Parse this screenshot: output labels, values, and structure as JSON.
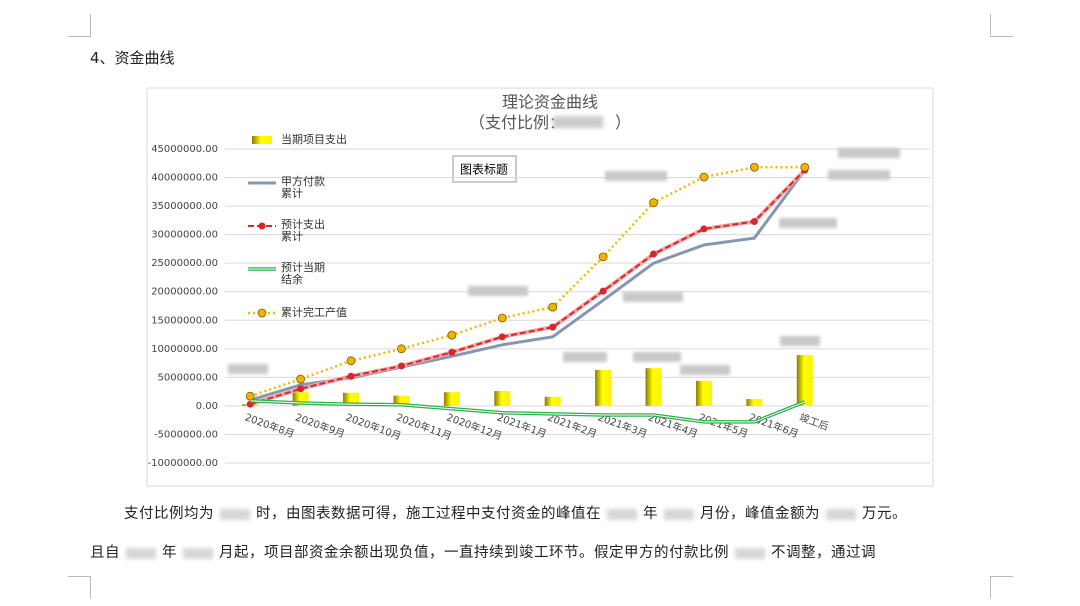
{
  "heading": "4、资金曲线",
  "chart_data": {
    "type": "combo",
    "title": "理论资金曲线",
    "subtitle_parts": [
      "（支付比例：",
      "）"
    ],
    "placeholder": "图表标题",
    "categories": [
      "2020年8月",
      "2020年9月",
      "2020年10月",
      "2020年11月",
      "2020年12月",
      "2021年1月",
      "2021年2月",
      "2021年3月",
      "2021年4月",
      "2021年5月",
      "2021年6月",
      "竣工后"
    ],
    "series": [
      {
        "name": "当期项目支出",
        "kind": "bar",
        "color": "#e6d800",
        "values": [
          300000,
          2400000,
          2300000,
          1800000,
          2400000,
          2600000,
          1600000,
          6300000,
          6600000,
          4400000,
          1200000,
          8900000
        ]
      },
      {
        "name": "甲方付款累计",
        "kind": "line",
        "color": "#8497b0",
        "values": [
          1000000,
          3700000,
          4900000,
          6800000,
          8700000,
          10700000,
          12100000,
          18500000,
          25000000,
          28200000,
          29400000,
          41300000
        ]
      },
      {
        "name": "预计支出累计",
        "kind": "line-dot",
        "color": "#d9262c",
        "values": [
          300000,
          3000000,
          5200000,
          7000000,
          9400000,
          12100000,
          13800000,
          20100000,
          26600000,
          31000000,
          32300000,
          41300000
        ]
      },
      {
        "name": "预计当期结余",
        "kind": "double-line",
        "color": "#2ab04d",
        "values": [
          900000,
          500000,
          300000,
          200000,
          -500000,
          -1200000,
          -1400000,
          -1600000,
          -1600000,
          -2800000,
          -2800000,
          700000
        ]
      },
      {
        "name": "累计完工产值",
        "kind": "dotted-marker",
        "color": "#f5b800",
        "values": [
          1700000,
          4700000,
          7900000,
          10000000,
          12400000,
          15400000,
          17300000,
          26100000,
          35600000,
          40100000,
          41800000,
          41800000
        ]
      }
    ],
    "ylim": [
      -10000000,
      45000000
    ],
    "yticks": [
      {
        "value": -10000000,
        "label": "-10000000.00"
      },
      {
        "value": -5000000,
        "label": "-5000000.00"
      },
      {
        "value": 0,
        "label": "0.00"
      },
      {
        "value": 5000000,
        "label": "5000000.00"
      },
      {
        "value": 10000000,
        "label": "10000000.00"
      },
      {
        "value": 15000000,
        "label": "15000000.00"
      },
      {
        "value": 20000000,
        "label": "20000000.00"
      },
      {
        "value": 25000000,
        "label": "25000000.00"
      },
      {
        "value": 30000000,
        "label": "30000000.00"
      },
      {
        "value": 35000000,
        "label": "35000000.00"
      },
      {
        "value": 40000000,
        "label": "40000000.00"
      },
      {
        "value": 45000000,
        "label": "45000000.00"
      }
    ],
    "grid": true,
    "legend": "left"
  },
  "paragraphs": [
    [
      "支付比例均为",
      "时，由图表数据可得，施工过程中支付资金的峰值在",
      "年",
      "月份，峰值金额为",
      "万元。"
    ],
    [
      "且自",
      "年",
      "月起，项目部资金余额出现负值，一直持续到竣工环节。假定甲方的付款比例",
      "不调整，通过调"
    ]
  ]
}
